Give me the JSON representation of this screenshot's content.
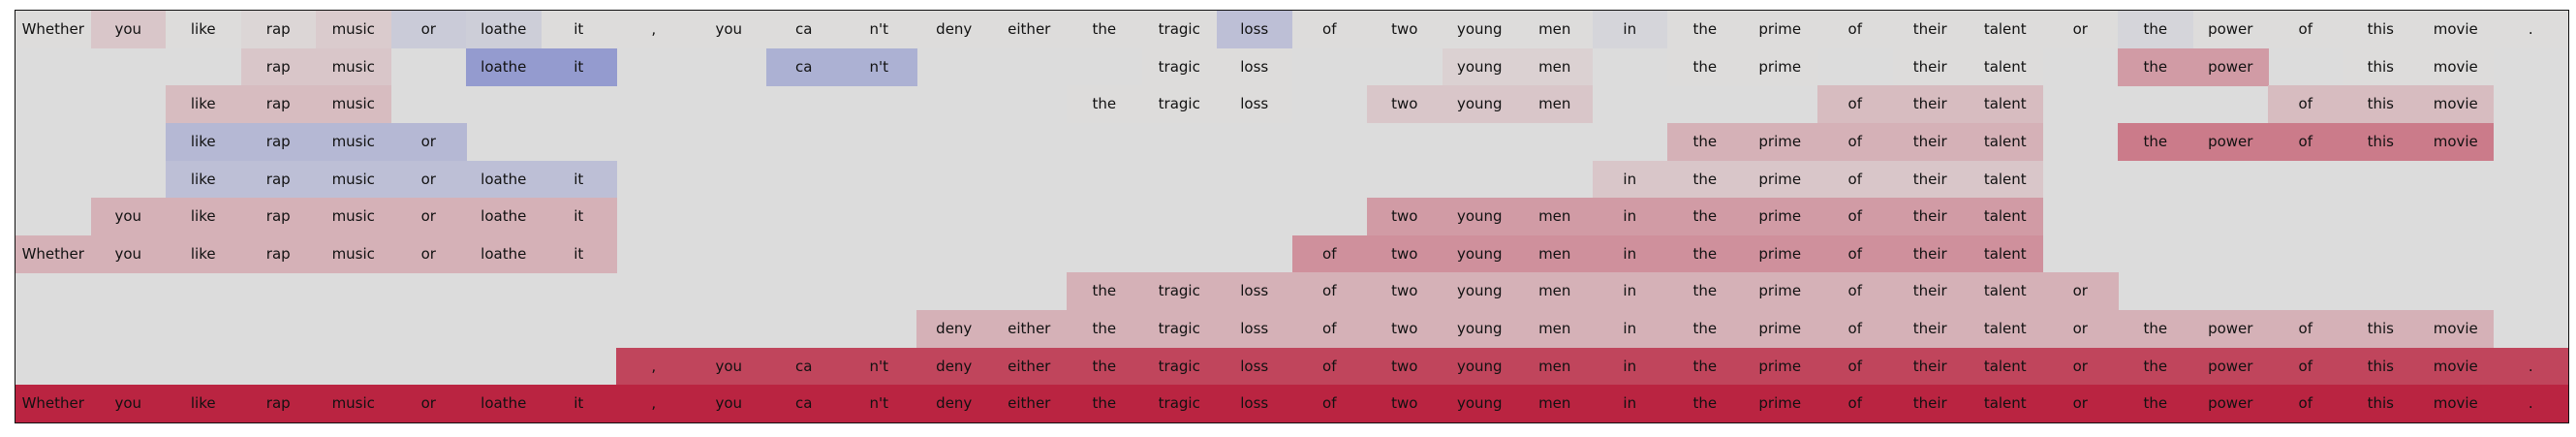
{
  "chart_data": {
    "type": "heatmap",
    "tokens": [
      "Whether",
      "you",
      "like",
      "rap",
      "music",
      "or",
      "loathe",
      "it",
      ",",
      "you",
      "ca",
      "n't",
      "deny",
      "either",
      "the",
      "tragic",
      "loss",
      "of",
      "two",
      "young",
      "men",
      "in",
      "the",
      "prime",
      "of",
      "their",
      "talent",
      "or",
      "the",
      "power",
      "of",
      "this",
      "movie",
      "."
    ],
    "rows": [
      {
        "present": [
          1,
          1,
          1,
          1,
          1,
          1,
          1,
          1,
          1,
          1,
          1,
          1,
          1,
          1,
          1,
          1,
          1,
          1,
          1,
          1,
          1,
          1,
          1,
          1,
          1,
          1,
          1,
          1,
          1,
          1,
          1,
          1,
          1,
          1
        ],
        "values": [
          0,
          0.1,
          0,
          0.03,
          0.08,
          -0.12,
          -0.1,
          0,
          0,
          0,
          0,
          0,
          0,
          0,
          0,
          0,
          -0.2,
          0,
          0,
          0,
          0,
          -0.05,
          0,
          0,
          0,
          0,
          0,
          0,
          -0.05,
          0,
          0,
          0,
          0,
          0
        ]
      },
      {
        "present": [
          0,
          0,
          0,
          1,
          1,
          0,
          1,
          1,
          0,
          0,
          1,
          1,
          0,
          0,
          0,
          1,
          1,
          0,
          0,
          1,
          1,
          0,
          1,
          1,
          0,
          1,
          1,
          0,
          1,
          1,
          0,
          1,
          1,
          0
        ],
        "values": [
          0,
          0,
          0,
          0.1,
          0.1,
          0,
          -0.45,
          -0.45,
          0,
          0,
          -0.3,
          -0.3,
          0,
          0,
          0,
          0,
          0,
          0,
          0,
          0.05,
          0.05,
          0,
          0,
          0,
          0,
          0,
          0,
          0,
          0.3,
          0.3,
          0,
          0,
          0,
          0
        ]
      },
      {
        "present": [
          0,
          0,
          1,
          1,
          1,
          0,
          0,
          0,
          0,
          0,
          0,
          0,
          0,
          0,
          1,
          1,
          1,
          0,
          1,
          1,
          1,
          0,
          0,
          0,
          1,
          1,
          1,
          0,
          0,
          0,
          1,
          1,
          1,
          0
        ],
        "values": [
          0,
          0,
          0.15,
          0.15,
          0.15,
          0,
          0,
          0,
          0,
          0,
          0,
          0,
          0,
          0,
          0,
          0,
          0,
          0,
          0.1,
          0.1,
          0.1,
          0,
          0,
          0,
          0.15,
          0.15,
          0.15,
          0,
          0,
          0,
          0.15,
          0.15,
          0.15,
          0
        ]
      },
      {
        "present": [
          0,
          0,
          1,
          1,
          1,
          1,
          0,
          0,
          0,
          0,
          0,
          0,
          0,
          0,
          0,
          0,
          0,
          0,
          0,
          0,
          0,
          0,
          1,
          1,
          1,
          1,
          1,
          0,
          1,
          1,
          1,
          1,
          1,
          0
        ],
        "values": [
          0,
          0,
          -0.25,
          -0.25,
          -0.25,
          -0.25,
          0,
          0,
          0,
          0,
          0,
          0,
          0,
          0,
          0,
          0,
          0,
          0,
          0,
          0,
          0,
          0,
          0.2,
          0.2,
          0.2,
          0.2,
          0.2,
          0,
          0.45,
          0.45,
          0.45,
          0.45,
          0.45,
          0
        ]
      },
      {
        "present": [
          0,
          0,
          1,
          1,
          1,
          1,
          1,
          1,
          0,
          0,
          0,
          0,
          0,
          0,
          0,
          0,
          0,
          0,
          0,
          0,
          0,
          1,
          1,
          1,
          1,
          1,
          1,
          0,
          0,
          0,
          0,
          0,
          0,
          0
        ],
        "values": [
          0,
          0,
          -0.2,
          -0.2,
          -0.2,
          -0.2,
          -0.2,
          -0.2,
          0,
          0,
          0,
          0,
          0,
          0,
          0,
          0,
          0,
          0,
          0,
          0,
          0,
          0.1,
          0.1,
          0.1,
          0.1,
          0.1,
          0.1,
          0,
          0,
          0,
          0,
          0,
          0,
          0
        ]
      },
      {
        "present": [
          0,
          1,
          1,
          1,
          1,
          1,
          1,
          1,
          0,
          0,
          0,
          0,
          0,
          0,
          0,
          0,
          0,
          0,
          1,
          1,
          1,
          1,
          1,
          1,
          1,
          1,
          1,
          0,
          0,
          0,
          0,
          0,
          0,
          0
        ],
        "values": [
          0,
          0.2,
          0.2,
          0.2,
          0.2,
          0.2,
          0.2,
          0.2,
          0,
          0,
          0,
          0,
          0,
          0,
          0,
          0,
          0,
          0,
          0.3,
          0.3,
          0.3,
          0.3,
          0.3,
          0.3,
          0.3,
          0.3,
          0.3,
          0,
          0,
          0,
          0,
          0,
          0,
          0
        ]
      },
      {
        "present": [
          1,
          1,
          1,
          1,
          1,
          1,
          1,
          1,
          0,
          0,
          0,
          0,
          0,
          0,
          0,
          0,
          0,
          1,
          1,
          1,
          1,
          1,
          1,
          1,
          1,
          1,
          1,
          0,
          0,
          0,
          0,
          0,
          0,
          0
        ],
        "values": [
          0.2,
          0.2,
          0.2,
          0.2,
          0.2,
          0.2,
          0.2,
          0.2,
          0,
          0,
          0,
          0,
          0,
          0,
          0,
          0,
          0,
          0.35,
          0.35,
          0.35,
          0.35,
          0.35,
          0.35,
          0.35,
          0.35,
          0.35,
          0.35,
          0,
          0,
          0,
          0,
          0,
          0,
          0
        ]
      },
      {
        "present": [
          0,
          0,
          0,
          0,
          0,
          0,
          0,
          0,
          0,
          0,
          0,
          0,
          0,
          0,
          1,
          1,
          1,
          1,
          1,
          1,
          1,
          1,
          1,
          1,
          1,
          1,
          1,
          1,
          0,
          0,
          0,
          0,
          0,
          0
        ],
        "values": [
          0,
          0,
          0,
          0,
          0,
          0,
          0,
          0,
          0,
          0,
          0,
          0,
          0,
          0,
          0.2,
          0.2,
          0.2,
          0.2,
          0.2,
          0.2,
          0.2,
          0.2,
          0.2,
          0.2,
          0.2,
          0.2,
          0.2,
          0.2,
          0,
          0,
          0,
          0,
          0,
          0
        ]
      },
      {
        "present": [
          0,
          0,
          0,
          0,
          0,
          0,
          0,
          0,
          0,
          0,
          0,
          0,
          1,
          1,
          1,
          1,
          1,
          1,
          1,
          1,
          1,
          1,
          1,
          1,
          1,
          1,
          1,
          1,
          1,
          1,
          1,
          1,
          1,
          0
        ],
        "values": [
          0,
          0,
          0,
          0,
          0,
          0,
          0,
          0,
          0,
          0,
          0,
          0,
          0.2,
          0.2,
          0.2,
          0.2,
          0.2,
          0.2,
          0.2,
          0.2,
          0.2,
          0.2,
          0.2,
          0.2,
          0.2,
          0.2,
          0.2,
          0.2,
          0.2,
          0.2,
          0.2,
          0.2,
          0.2,
          0
        ]
      },
      {
        "present": [
          0,
          0,
          0,
          0,
          0,
          0,
          0,
          0,
          1,
          1,
          1,
          1,
          1,
          1,
          1,
          1,
          1,
          1,
          1,
          1,
          1,
          1,
          1,
          1,
          1,
          1,
          1,
          1,
          1,
          1,
          1,
          1,
          1,
          1
        ],
        "values": [
          0,
          0,
          0,
          0,
          0,
          0,
          0,
          0,
          0.7,
          0.7,
          0.7,
          0.7,
          0.7,
          0.7,
          0.7,
          0.7,
          0.7,
          0.7,
          0.7,
          0.7,
          0.7,
          0.7,
          0.7,
          0.7,
          0.7,
          0.7,
          0.7,
          0.7,
          0.7,
          0.7,
          0.7,
          0.7,
          0.7,
          0.7
        ]
      },
      {
        "present": [
          1,
          1,
          1,
          1,
          1,
          1,
          1,
          1,
          1,
          1,
          1,
          1,
          1,
          1,
          1,
          1,
          1,
          1,
          1,
          1,
          1,
          1,
          1,
          1,
          1,
          1,
          1,
          1,
          1,
          1,
          1,
          1,
          1,
          1
        ],
        "values": [
          0.85,
          0.85,
          0.85,
          0.85,
          0.85,
          0.85,
          0.85,
          0.85,
          0.85,
          0.85,
          0.85,
          0.85,
          0.85,
          0.85,
          0.85,
          0.85,
          0.85,
          0.85,
          0.85,
          0.85,
          0.85,
          0.85,
          0.85,
          0.85,
          0.85,
          0.85,
          0.85,
          0.85,
          0.85,
          0.85,
          0.85,
          0.85,
          0.85,
          0.85
        ]
      }
    ],
    "colors": {
      "background": "#dcdcdc",
      "neutral": "#dddcdb",
      "positive_max": "#b40426",
      "negative_max": "#3b4cc0"
    },
    "grid": false,
    "title": "",
    "xlabel": "",
    "ylabel": ""
  }
}
